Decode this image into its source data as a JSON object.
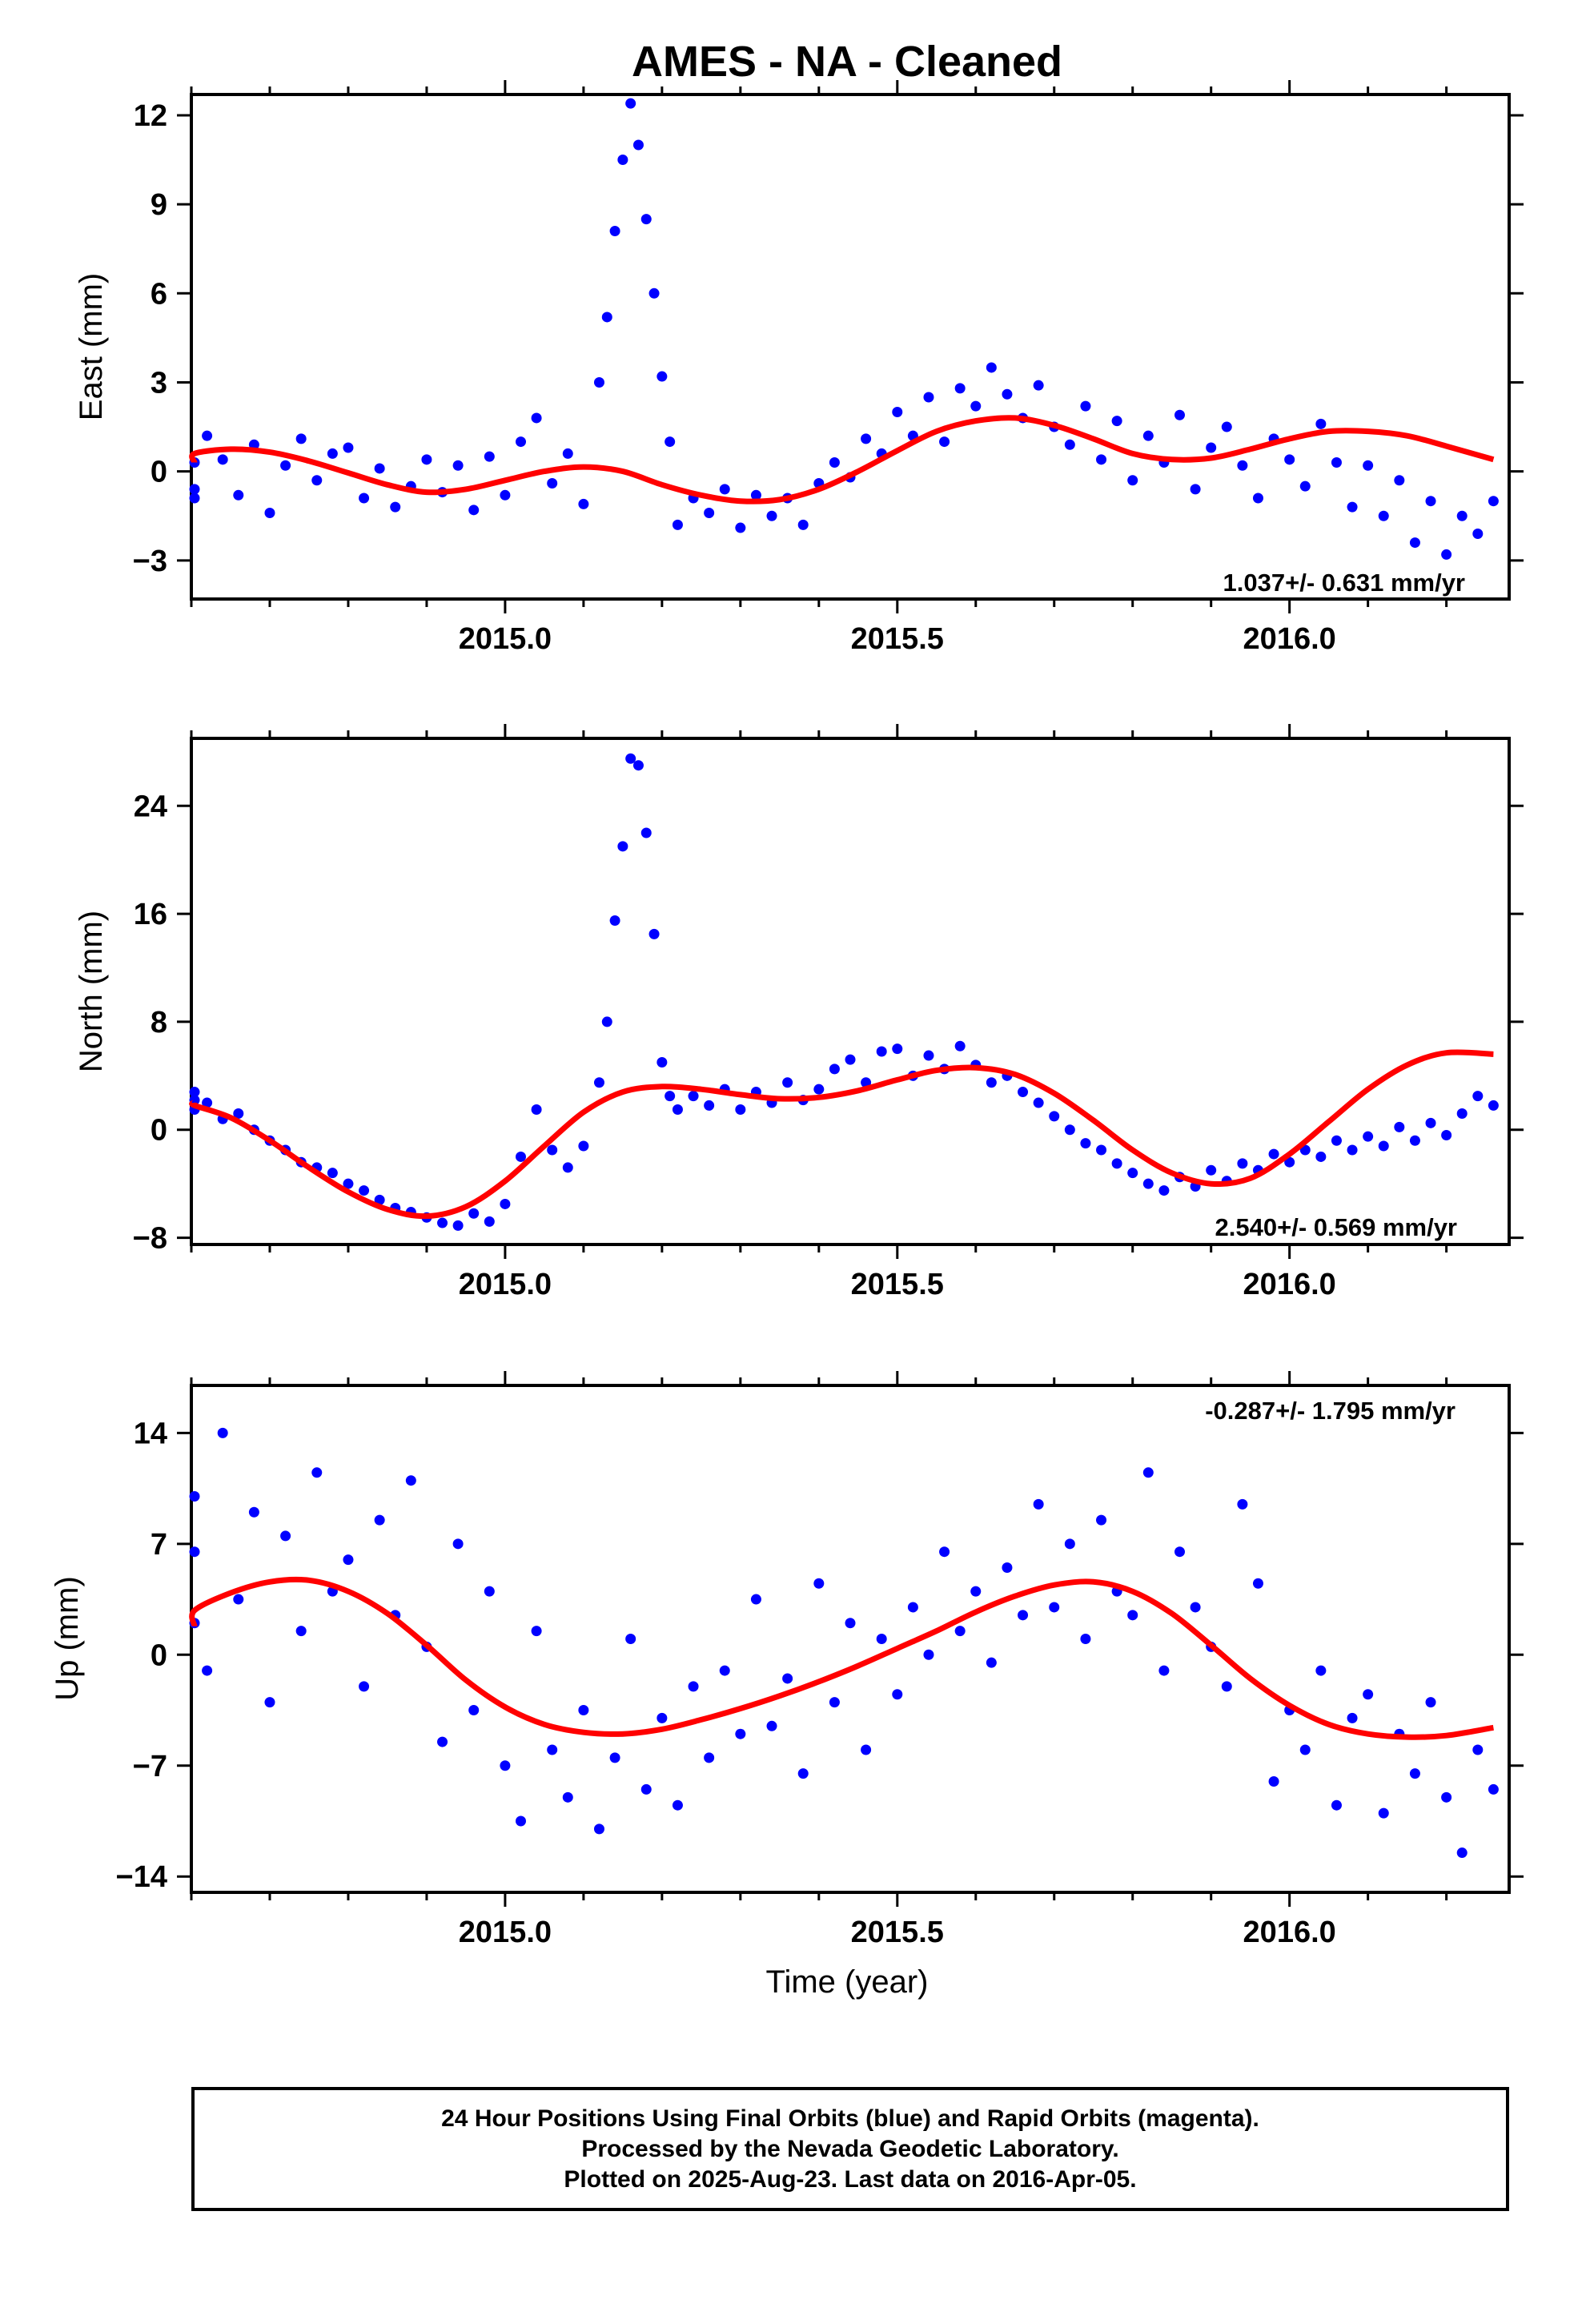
{
  "title": "AMES  - NA - Cleaned",
  "xlabel": "Time (year)",
  "footer": {
    "line1": "24 Hour Positions Using Final Orbits (blue) and Rapid Orbits (magenta).",
    "line2": "Processed by the Nevada Geodetic Laboratory.",
    "line3": "Plotted on 2025-Aug-23. Last data on 2016-Apr-05."
  },
  "colors": {
    "points": "#0000ff",
    "model": "#ff0000",
    "frame": "#000000"
  },
  "chart_data": [
    {
      "type": "scatter",
      "ylabel": "East (mm)",
      "xlim": [
        2014.6,
        2016.28
      ],
      "ylim": [
        -4.3,
        12.7
      ],
      "xticks": [
        2015.0,
        2015.5,
        2016.0
      ],
      "yticks": [
        -3,
        0,
        3,
        6,
        9,
        12
      ],
      "rate_text": "1.037+/- 0.631 mm/yr",
      "rate_position": "bottom-right",
      "series": [
        {
          "style": "points",
          "x": [
            2014.56,
            2014.58,
            2014.6,
            2014.62,
            2014.64,
            2014.66,
            2014.68,
            2014.7,
            2014.72,
            2014.74,
            2014.76,
            2014.78,
            2014.8,
            2014.82,
            2014.84,
            2014.86,
            2014.88,
            2014.9,
            2014.92,
            2014.94,
            2014.96,
            2014.98,
            2015.0,
            2015.02,
            2015.04,
            2015.06,
            2015.08,
            2015.1,
            2015.12,
            2015.13,
            2015.14,
            2015.15,
            2015.16,
            2015.17,
            2015.18,
            2015.19,
            2015.2,
            2015.21,
            2015.22,
            2015.24,
            2015.26,
            2015.28,
            2015.3,
            2015.32,
            2015.34,
            2015.36,
            2015.38,
            2015.4,
            2015.42,
            2015.44,
            2015.46,
            2015.48,
            2015.5,
            2015.52,
            2015.54,
            2015.56,
            2015.58,
            2015.6,
            2015.62,
            2015.64,
            2015.66,
            2015.68,
            2015.7,
            2015.72,
            2015.74,
            2015.76,
            2015.78,
            2015.8,
            2015.82,
            2015.84,
            2015.86,
            2015.88,
            2015.9,
            2015.92,
            2015.94,
            2015.96,
            2015.98,
            2016.0,
            2016.02,
            2016.04,
            2016.06,
            2016.08,
            2016.1,
            2016.12,
            2016.14,
            2016.16,
            2016.18,
            2016.2,
            2016.22,
            2016.24,
            2016.26
          ],
          "y": [
            -0.9,
            0.3,
            -0.6,
            1.2,
            0.4,
            -0.8,
            0.9,
            -1.4,
            0.2,
            1.1,
            -0.3,
            0.6,
            0.8,
            -0.9,
            0.1,
            -1.2,
            -0.5,
            0.4,
            -0.7,
            0.2,
            -1.3,
            0.5,
            -0.8,
            1.0,
            1.8,
            -0.4,
            0.6,
            -1.1,
            3.0,
            5.2,
            8.1,
            10.5,
            12.4,
            11.0,
            8.5,
            6.0,
            3.2,
            1.0,
            -1.8,
            -0.9,
            -1.4,
            -0.6,
            -1.9,
            -0.8,
            -1.5,
            -0.9,
            -1.8,
            -0.4,
            0.3,
            -0.2,
            1.1,
            0.6,
            2.0,
            1.2,
            2.5,
            1.0,
            2.8,
            2.2,
            3.5,
            2.6,
            1.8,
            2.9,
            1.5,
            0.9,
            2.2,
            0.4,
            1.7,
            -0.3,
            1.2,
            0.3,
            1.9,
            -0.6,
            0.8,
            1.5,
            0.2,
            -0.9,
            1.1,
            0.4,
            -0.5,
            1.6,
            0.3,
            -1.2,
            0.2,
            -1.5,
            -0.3,
            -2.4,
            -1.0,
            -2.8,
            -1.5,
            -2.1,
            -1.0
          ]
        },
        {
          "style": "line",
          "x": [
            2014.56,
            2014.6,
            2014.65,
            2014.7,
            2014.75,
            2014.8,
            2014.85,
            2014.9,
            2014.95,
            2015.0,
            2015.05,
            2015.1,
            2015.15,
            2015.2,
            2015.25,
            2015.3,
            2015.35,
            2015.4,
            2015.45,
            2015.5,
            2015.55,
            2015.6,
            2015.65,
            2015.7,
            2015.75,
            2015.8,
            2015.85,
            2015.9,
            2015.95,
            2016.0,
            2016.05,
            2016.1,
            2016.15,
            2016.2,
            2016.26
          ],
          "y": [
            0.3,
            0.6,
            0.75,
            0.65,
            0.35,
            -0.05,
            -0.45,
            -0.7,
            -0.6,
            -0.3,
            0.0,
            0.15,
            0.0,
            -0.45,
            -0.8,
            -1.0,
            -0.95,
            -0.6,
            0.0,
            0.7,
            1.35,
            1.7,
            1.8,
            1.55,
            1.1,
            0.6,
            0.4,
            0.45,
            0.75,
            1.1,
            1.35,
            1.35,
            1.2,
            0.85,
            0.4
          ]
        }
      ]
    },
    {
      "type": "scatter",
      "ylabel": "North (mm)",
      "xlim": [
        2014.6,
        2016.28
      ],
      "ylim": [
        -8.5,
        29.0
      ],
      "xticks": [
        2015.0,
        2015.5,
        2016.0
      ],
      "yticks": [
        -8,
        0,
        8,
        16,
        24
      ],
      "rate_text": "2.540+/- 0.569 mm/yr",
      "rate_position": "bottom-right",
      "series": [
        {
          "style": "points",
          "x": [
            2014.56,
            2014.58,
            2014.6,
            2014.62,
            2014.64,
            2014.66,
            2014.68,
            2014.7,
            2014.72,
            2014.74,
            2014.76,
            2014.78,
            2014.8,
            2014.82,
            2014.84,
            2014.86,
            2014.88,
            2014.9,
            2014.92,
            2014.94,
            2014.96,
            2014.98,
            2015.0,
            2015.02,
            2015.04,
            2015.06,
            2015.08,
            2015.1,
            2015.12,
            2015.13,
            2015.14,
            2015.15,
            2015.16,
            2015.17,
            2015.18,
            2015.19,
            2015.2,
            2015.21,
            2015.22,
            2015.24,
            2015.26,
            2015.28,
            2015.3,
            2015.32,
            2015.34,
            2015.36,
            2015.38,
            2015.4,
            2015.42,
            2015.44,
            2015.46,
            2015.48,
            2015.5,
            2015.52,
            2015.54,
            2015.56,
            2015.58,
            2015.6,
            2015.62,
            2015.64,
            2015.66,
            2015.68,
            2015.7,
            2015.72,
            2015.74,
            2015.76,
            2015.78,
            2015.8,
            2015.82,
            2015.84,
            2015.86,
            2015.88,
            2015.9,
            2015.92,
            2015.94,
            2015.96,
            2015.98,
            2016.0,
            2016.02,
            2016.04,
            2016.06,
            2016.08,
            2016.1,
            2016.12,
            2016.14,
            2016.16,
            2016.18,
            2016.2,
            2016.22,
            2016.24,
            2016.26
          ],
          "y": [
            2.2,
            2.8,
            1.5,
            2.0,
            0.8,
            1.2,
            0.0,
            -0.8,
            -1.5,
            -2.4,
            -2.8,
            -3.2,
            -4.0,
            -4.5,
            -5.2,
            -5.8,
            -6.1,
            -6.5,
            -6.9,
            -7.1,
            -6.2,
            -6.8,
            -5.5,
            -2.0,
            1.5,
            -1.5,
            -2.8,
            -1.2,
            3.5,
            8.0,
            15.5,
            21.0,
            27.5,
            27.0,
            22.0,
            14.5,
            5.0,
            2.5,
            1.5,
            2.5,
            1.8,
            3.0,
            1.5,
            2.8,
            2.0,
            3.5,
            2.2,
            3.0,
            4.5,
            5.2,
            3.5,
            5.8,
            6.0,
            4.0,
            5.5,
            4.5,
            6.2,
            4.8,
            3.5,
            4.0,
            2.8,
            2.0,
            1.0,
            0.0,
            -1.0,
            -1.5,
            -2.5,
            -3.2,
            -4.0,
            -4.5,
            -3.5,
            -4.2,
            -3.0,
            -3.8,
            -2.5,
            -3.0,
            -1.8,
            -2.4,
            -1.5,
            -2.0,
            -0.8,
            -1.5,
            -0.5,
            -1.2,
            0.2,
            -0.8,
            0.5,
            -0.4,
            1.2,
            2.5,
            1.8
          ]
        },
        {
          "style": "line",
          "x": [
            2014.56,
            2014.6,
            2014.65,
            2014.7,
            2014.75,
            2014.8,
            2014.85,
            2014.9,
            2014.95,
            2015.0,
            2015.05,
            2015.1,
            2015.15,
            2015.2,
            2015.25,
            2015.3,
            2015.35,
            2015.4,
            2015.45,
            2015.5,
            2015.55,
            2015.6,
            2015.65,
            2015.7,
            2015.75,
            2015.8,
            2015.85,
            2015.9,
            2015.95,
            2016.0,
            2016.05,
            2016.1,
            2016.15,
            2016.2,
            2016.26
          ],
          "y": [
            2.0,
            1.8,
            0.9,
            -0.8,
            -2.8,
            -4.6,
            -5.9,
            -6.4,
            -5.7,
            -3.8,
            -1.2,
            1.3,
            2.8,
            3.2,
            3.0,
            2.6,
            2.3,
            2.4,
            2.9,
            3.7,
            4.4,
            4.6,
            4.1,
            2.7,
            0.7,
            -1.5,
            -3.2,
            -4.0,
            -3.6,
            -1.8,
            0.6,
            3.0,
            4.8,
            5.7,
            5.6
          ]
        }
      ]
    },
    {
      "type": "scatter",
      "ylabel": "Up (mm)",
      "xlim": [
        2014.6,
        2016.28
      ],
      "ylim": [
        -15.0,
        17.0
      ],
      "xticks": [
        2015.0,
        2015.5,
        2016.0
      ],
      "yticks": [
        -14,
        -7,
        0,
        7,
        14
      ],
      "rate_text": "-0.287+/- 1.795 mm/yr",
      "rate_position": "top-right",
      "series": [
        {
          "style": "points",
          "x": [
            2014.56,
            2014.58,
            2014.6,
            2014.62,
            2014.64,
            2014.66,
            2014.68,
            2014.7,
            2014.72,
            2014.74,
            2014.76,
            2014.78,
            2014.8,
            2014.82,
            2014.84,
            2014.86,
            2014.88,
            2014.9,
            2014.92,
            2014.94,
            2014.96,
            2014.98,
            2015.0,
            2015.02,
            2015.04,
            2015.06,
            2015.08,
            2015.1,
            2015.12,
            2015.14,
            2015.16,
            2015.18,
            2015.2,
            2015.22,
            2015.24,
            2015.26,
            2015.28,
            2015.3,
            2015.32,
            2015.34,
            2015.36,
            2015.38,
            2015.4,
            2015.42,
            2015.44,
            2015.46,
            2015.48,
            2015.5,
            2015.52,
            2015.54,
            2015.56,
            2015.58,
            2015.6,
            2015.62,
            2015.64,
            2015.66,
            2015.68,
            2015.7,
            2015.72,
            2015.74,
            2015.76,
            2015.78,
            2015.8,
            2015.82,
            2015.84,
            2015.86,
            2015.88,
            2015.9,
            2015.92,
            2015.94,
            2015.96,
            2015.98,
            2016.0,
            2016.02,
            2016.04,
            2016.06,
            2016.08,
            2016.1,
            2016.12,
            2016.14,
            2016.16,
            2016.18,
            2016.2,
            2016.22,
            2016.24,
            2016.26
          ],
          "y": [
            10.0,
            2.0,
            6.5,
            -1.0,
            14.0,
            3.5,
            9.0,
            -3.0,
            7.5,
            1.5,
            11.5,
            4.0,
            6.0,
            -2.0,
            8.5,
            2.5,
            11.0,
            0.5,
            -5.5,
            7.0,
            -3.5,
            4.0,
            -7.0,
            -10.5,
            1.5,
            -6.0,
            -9.0,
            -3.5,
            -11.0,
            -6.5,
            1.0,
            -8.5,
            -4.0,
            -9.5,
            -2.0,
            -6.5,
            -1.0,
            -5.0,
            3.5,
            -4.5,
            -1.5,
            -7.5,
            4.5,
            -3.0,
            2.0,
            -6.0,
            1.0,
            -2.5,
            3.0,
            0.0,
            6.5,
            1.5,
            4.0,
            -0.5,
            5.5,
            2.5,
            9.5,
            3.0,
            7.0,
            1.0,
            8.5,
            4.0,
            2.5,
            11.5,
            -1.0,
            6.5,
            3.0,
            0.5,
            -2.0,
            9.5,
            4.5,
            -8.0,
            -3.5,
            -6.0,
            -1.0,
            -9.5,
            -4.0,
            -2.5,
            -10.0,
            -5.0,
            -7.5,
            -3.0,
            -9.0,
            -12.5,
            -6.0,
            -8.5
          ]
        },
        {
          "style": "line",
          "x": [
            2014.56,
            2014.6,
            2014.65,
            2014.7,
            2014.75,
            2014.8,
            2014.85,
            2014.9,
            2014.95,
            2015.0,
            2015.05,
            2015.1,
            2015.15,
            2015.2,
            2015.25,
            2015.3,
            2015.35,
            2015.4,
            2015.45,
            2015.5,
            2015.55,
            2015.6,
            2015.65,
            2015.7,
            2015.75,
            2015.8,
            2015.85,
            2015.9,
            2015.95,
            2016.0,
            2016.05,
            2016.1,
            2016.15,
            2016.2,
            2016.26
          ],
          "y": [
            1.8,
            2.8,
            3.9,
            4.6,
            4.7,
            4.0,
            2.6,
            0.6,
            -1.6,
            -3.3,
            -4.4,
            -4.9,
            -5.0,
            -4.7,
            -4.1,
            -3.4,
            -2.6,
            -1.7,
            -0.7,
            0.4,
            1.5,
            2.7,
            3.7,
            4.4,
            4.6,
            4.0,
            2.6,
            0.6,
            -1.5,
            -3.2,
            -4.4,
            -5.0,
            -5.2,
            -5.1,
            -4.6
          ]
        }
      ]
    }
  ]
}
